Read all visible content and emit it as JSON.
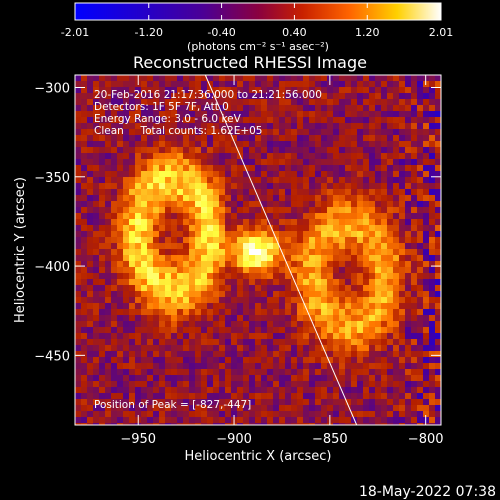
{
  "chart_data": {
    "type": "heatmap",
    "title": "Reconstructed RHESSI Image",
    "xlabel": "Heliocentric X (arcsec)",
    "ylabel": "Heliocentric Y (arcsec)",
    "xlim": [
      -983,
      -792
    ],
    "ylim": [
      -489,
      -293
    ],
    "x_ticks": [
      -950,
      -900,
      -850,
      -800
    ],
    "y_ticks": [
      -300,
      -350,
      -400,
      -450
    ],
    "x_tick_labels": [
      "−950",
      "−900",
      "−850",
      "−800"
    ],
    "y_tick_labels": [
      "−300",
      "−350",
      "−400",
      "−450"
    ],
    "colorbar": {
      "min": -2.01,
      "max": 2.01,
      "ticks": [
        -2.01,
        -1.2,
        -0.4,
        0.4,
        1.2,
        2.01
      ],
      "tick_labels": [
        "-2.01",
        "-1.20",
        "-0.40",
        "0.40",
        "1.20",
        "2.01"
      ],
      "units_label": "(photons cm⁻² s⁻¹ asec⁻²)"
    },
    "annotations": {
      "time_range": "20-Feb-2016 21:17:36.000 to 21:21:56.000",
      "detectors": "Detectors: 1F 5F 7F, Att 0",
      "energy_range": "Energy Range: 3.0 - 6.0 keV",
      "method": "Clean     Total counts: 1.62E+05",
      "peak": "Position of Peak = [-827,-447]"
    },
    "features": {
      "peak_position": [
        -827,
        -447
      ],
      "central_source": [
        -888,
        -392
      ],
      "left_arc_center": [
        -932,
        -382
      ],
      "right_arc_center": [
        -840,
        -405
      ],
      "limb_line": [
        [
          -915,
          -293
        ],
        [
          -836,
          -489
        ]
      ]
    },
    "colormap": [
      "#0000ff",
      "#4b0096",
      "#b42000",
      "#ff7800",
      "#ffff40",
      "#ffffff"
    ],
    "grid": false
  },
  "footer": {
    "timestamp": "18-May-2022 07:38"
  }
}
